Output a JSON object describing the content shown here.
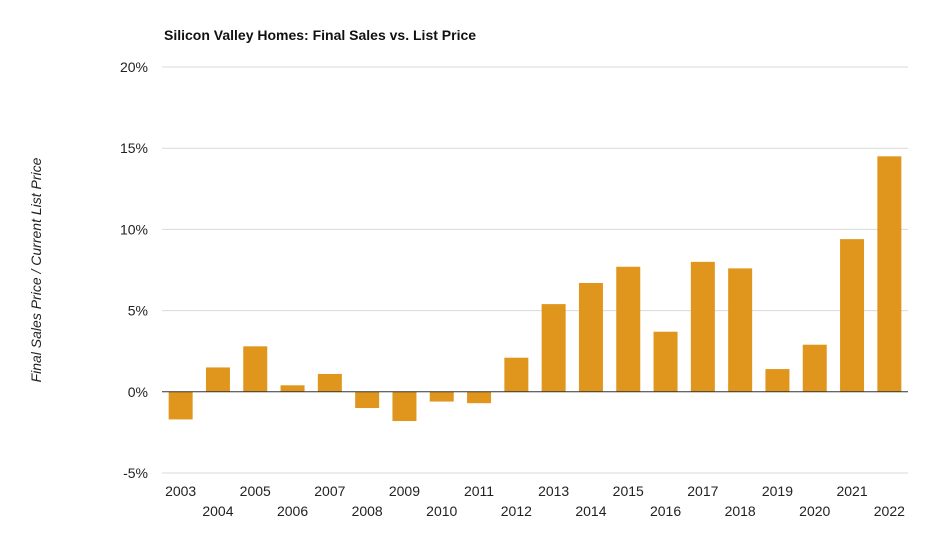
{
  "chart_data": {
    "type": "bar",
    "title": "Silicon Valley Homes: Final Sales vs. List Price",
    "xlabel": "",
    "ylabel": "Final Sales Price / Current List Price",
    "ylim": [
      -5,
      20
    ],
    "yticks": [
      -5,
      0,
      5,
      10,
      15,
      20
    ],
    "ytick_labels": [
      "-5%",
      "0%",
      "5%",
      "10%",
      "15%",
      "20%"
    ],
    "grid": true,
    "legend": "none",
    "bar_color": "#e0951d",
    "categories": [
      "2003",
      "2004",
      "2005",
      "2006",
      "2007",
      "2008",
      "2009",
      "2010",
      "2011",
      "2012",
      "2013",
      "2014",
      "2015",
      "2016",
      "2017",
      "2018",
      "2019",
      "2020",
      "2021",
      "2022"
    ],
    "values": [
      -1.7,
      1.5,
      2.8,
      0.4,
      1.1,
      -1.0,
      -1.8,
      -0.6,
      -0.7,
      2.1,
      5.4,
      6.7,
      7.7,
      3.7,
      8.0,
      7.6,
      1.4,
      2.9,
      9.4,
      14.5
    ]
  }
}
